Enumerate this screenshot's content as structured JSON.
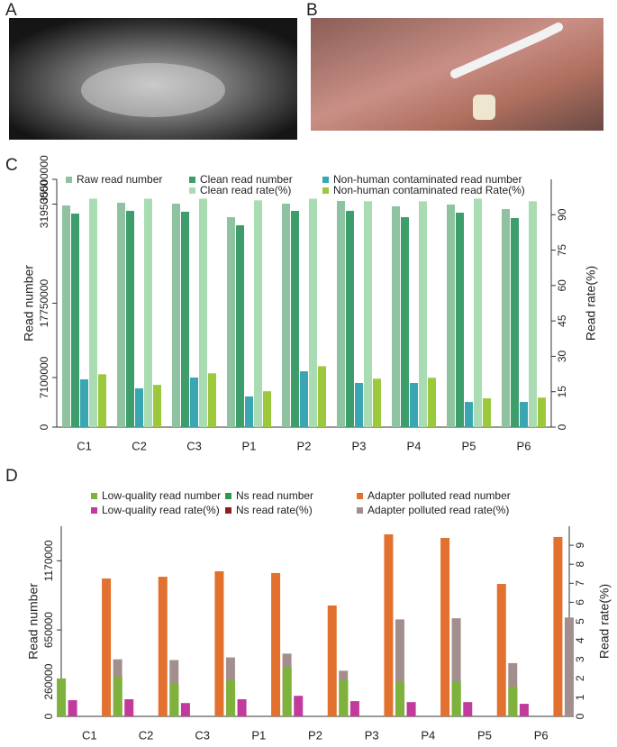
{
  "panel_labels": [
    "A",
    "B",
    "C",
    "D"
  ],
  "chart_data": [
    {
      "type": "bar",
      "y_label": "Read number",
      "y2_label": "Read rate(%)",
      "categories": [
        "C1",
        "C2",
        "C3",
        "P1",
        "P2",
        "P3",
        "P4",
        "P5",
        "P6"
      ],
      "ylim": [
        0,
        35500000
      ],
      "yticks": [
        0,
        7100000,
        17750000,
        31950000,
        35500000
      ],
      "y2lim": [
        0,
        105
      ],
      "y2ticks": [
        0,
        15,
        30,
        45,
        60,
        75,
        90
      ],
      "series": [
        {
          "name": "Raw read number",
          "color": "#8fc2a0",
          "values": [
            31760000,
            32140000,
            32010000,
            30080000,
            32010000,
            32400000,
            31630000,
            31890000,
            31240000
          ]
        },
        {
          "name": "Clean read number",
          "color": "#3d9e6c",
          "values": [
            30590000,
            30980000,
            30850000,
            28920000,
            30980000,
            30980000,
            30080000,
            30720000,
            29950000
          ]
        },
        {
          "name": "Non-human contaminated read number",
          "color": "#3aa6b2",
          "values": [
            6840000,
            5550000,
            7100000,
            4390000,
            8000000,
            6330000,
            6330000,
            3610000,
            3610000
          ]
        },
        {
          "name": "Clean read rate(%)",
          "color": "#a9dcb2",
          "axis": "y2",
          "values": [
            96.8,
            96.8,
            96.8,
            96.1,
            96.8,
            95.7,
            95.7,
            96.8,
            95.7
          ]
        },
        {
          "name": "Non-human contaminated read Rate(%)",
          "color": "#9cc83c",
          "axis": "y2",
          "values": [
            22.4,
            17.9,
            22.8,
            15.2,
            25.8,
            20.5,
            20.9,
            12.2,
            12.5
          ]
        }
      ]
    },
    {
      "type": "bar",
      "y_label": "Read number",
      "y2_label": "Read rate(%)",
      "categories": [
        "C1",
        "C2",
        "C3",
        "P1",
        "P2",
        "P3",
        "P4",
        "P5",
        "P6"
      ],
      "ylim": [
        0,
        1430000
      ],
      "yticks": [
        0,
        260000,
        650000,
        1170000
      ],
      "y2lim": [
        0,
        10
      ],
      "y2ticks": [
        0,
        1,
        2,
        3,
        4,
        5,
        6,
        7,
        8,
        9
      ],
      "series": [
        {
          "name": "Low-quality read number",
          "color": "#7fb23c",
          "values": [
            285000,
            298000,
            244000,
            271000,
            373000,
            271000,
            258000,
            264000,
            224000
          ]
        },
        {
          "name": "Low-quality read rate(%)",
          "color": "#c23a9c",
          "axis": "y2",
          "values": [
            0.85,
            0.9,
            0.7,
            0.9,
            1.08,
            0.8,
            0.75,
            0.75,
            0.66
          ]
        },
        {
          "name": "Ns read number",
          "color": "#2e9a48",
          "values": [
            0,
            0,
            0,
            0,
            0,
            0,
            0,
            0,
            0
          ]
        },
        {
          "name": "Ns read rate(%)",
          "color": "#8e1c1c",
          "axis": "y2",
          "values": [
            0,
            0,
            0,
            0,
            0,
            0,
            0,
            0,
            0
          ]
        },
        {
          "name": "Adapter polluted read number",
          "color": "#e2702e",
          "values": [
            1037000,
            1050000,
            1091000,
            1078000,
            834000,
            1369000,
            1342000,
            996000,
            1349000
          ]
        },
        {
          "name": "Adapter polluted read rate(%)",
          "color": "#a38e8e",
          "axis": "y2",
          "values": [
            3.0,
            2.96,
            3.1,
            3.3,
            2.4,
            5.1,
            5.16,
            2.8,
            5.2
          ]
        }
      ]
    }
  ]
}
